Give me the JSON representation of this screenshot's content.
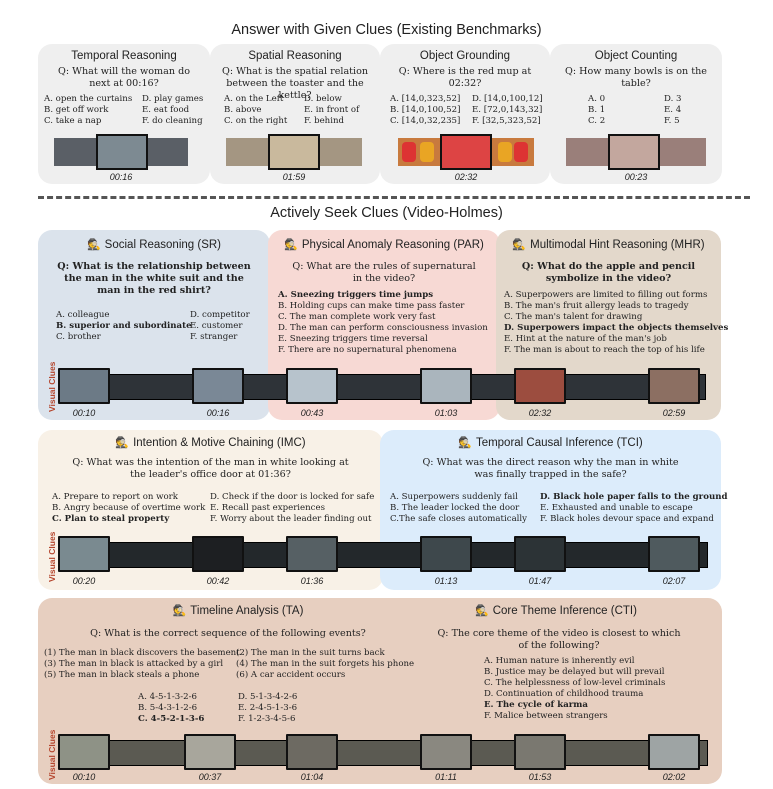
{
  "top_title": "Answer with Given Clues (Existing Benchmarks)",
  "mid_title": "Actively Seek Clues (Video-Holmes)",
  "existing": [
    {
      "title": "Temporal Reasoning",
      "q": "Q: What will the woman do next at 00:16?",
      "opts": [
        "A. open the curtains",
        "B. get off work",
        "C. take a nap",
        "D. play games",
        "E. eat food",
        "F. do cleaning"
      ],
      "ts": "00:16"
    },
    {
      "title": "Spatial Reasoning",
      "q": "Q: What is the spatial relation between the toaster and the kettle?",
      "opts": [
        "A. on the Left",
        "B. above",
        "C. on the right",
        "D. below",
        "E. in front of",
        "F. behind"
      ],
      "ts": "01:59"
    },
    {
      "title": "Object Grounding",
      "q": "Q: Where is the red mup at 02:32?",
      "opts": [
        "A. [14,0,323,52]",
        "B. [14,0,100,52]",
        "C. [14,0,32,235]",
        "D. [14,0,100,12]",
        "E. [72,0,143,32]",
        "F. [32,5,323,52]"
      ],
      "ts": "02:32"
    },
    {
      "title": "Object Counting",
      "q": "Q: How many bowls is on the table?",
      "opts": [
        "A. 0",
        "B. 1",
        "C. 2",
        "D. 3",
        "E. 4",
        "F. 5"
      ],
      "ts": "00:23"
    }
  ],
  "sr": {
    "title": "Social Reasoning (SR)",
    "q": "Q: What is the relationship between the man in the white suit and the man in the red shirt?",
    "opts": [
      "A. colleague",
      "B. superior and subordinate",
      "C. brother",
      "D. competitor",
      "E. customer",
      "F. stranger"
    ]
  },
  "par": {
    "title": "Physical Anomaly Reasoning (PAR)",
    "q": "Q: What are the rules of supernatural in the video?",
    "opts": [
      "A. Sneezing triggers time jumps",
      "B. Holding cups can make time pass faster",
      "C. The man complete work very fast",
      "D. The man can perform consciousness invasion",
      "E. Sneezing triggers time reversal",
      "F. There are no supernatural phenomena"
    ]
  },
  "mhr": {
    "title": "Multimodal Hint Reasoning (MHR)",
    "q": "Q: What do the apple and pencil symbolize in the video?",
    "opts": [
      "A. Superpowers are limited to filling out forms",
      "B. The man's fruit allergy leads to tragedy",
      "C. The man's talent for drawing",
      "D. Superpowers impact the objects themselves",
      "E. Hint at the nature of the man's job",
      "F. The man is about to reach the top of his life"
    ]
  },
  "row1_ts": [
    "00:10",
    "00:16",
    "00:43",
    "01:03",
    "02:32",
    "02:59"
  ],
  "imc": {
    "title": "Intention & Motive Chaining (IMC)",
    "q": "Q: What was the intention of the man in white looking at the leader's office door at 01:36?",
    "opts": [
      "A. Prepare to report on work",
      "B. Angry because of overtime work",
      "C. Plan to steal property",
      "D. Check if the door is locked for safe",
      "E. Recall past experiences",
      "F. Worry about the leader finding out"
    ]
  },
  "tci": {
    "title": "Temporal Causal Inference (TCI)",
    "q": "Q: What was the direct reason why the man in white was finally trapped in the safe?",
    "opts": [
      "A. Superpowers suddenly fail",
      "B. The leader locked the door",
      "C.The safe closes automatically",
      "D. Black hole paper falls to the ground",
      "E. Exhausted and unable to escape",
      "F. Black holes devour space and expand"
    ]
  },
  "row2_ts": [
    "00:20",
    "00:42",
    "01:36",
    "01:13",
    "01:47",
    "02:07"
  ],
  "ta": {
    "title": "Timeline Analysis (TA)",
    "q": "Q: What is the correct sequence of the following events?",
    "events": [
      "(1) The man in black discovers the basement",
      "(2) The man in the suit turns back",
      "(3) The man in black is attacked by a girl",
      "(4) The man in the suit forgets his phone",
      "(5) The man in black steals a phone",
      "(6) A car accident occurs"
    ],
    "opts": [
      "A. 4-5-1-3-2-6",
      "B. 5-4-3-1-2-6",
      "C. 4-5-2-1-3-6",
      "D. 5-1-3-4-2-6",
      "E. 2-4-5-1-3-6",
      "F. 1-2-3-4-5-6"
    ]
  },
  "cti": {
    "title": "Core Theme Inference (CTI)",
    "q": "Q: The core theme of the video is closest to which of the following?",
    "opts": [
      "A. Human nature is inherently evil",
      "B. Justice may be delayed but will prevail",
      "C. The helplessness of low-level criminals",
      "D. Continuation of childhood trauma",
      "E. The cycle of karma",
      "F. Malice between strangers"
    ]
  },
  "row3_ts": [
    "00:10",
    "00:37",
    "01:04",
    "01:11",
    "01:53",
    "02:02"
  ],
  "visual_clues": "Visual Clues",
  "colors": {
    "grey": "#efefef",
    "sr": "#dbe3ec",
    "par": "#f7d9d4",
    "mhr": "#e3d8cb",
    "imc": "#f8f1e7",
    "tci": "#dcecfb",
    "bottom": "#e7cfc0"
  }
}
